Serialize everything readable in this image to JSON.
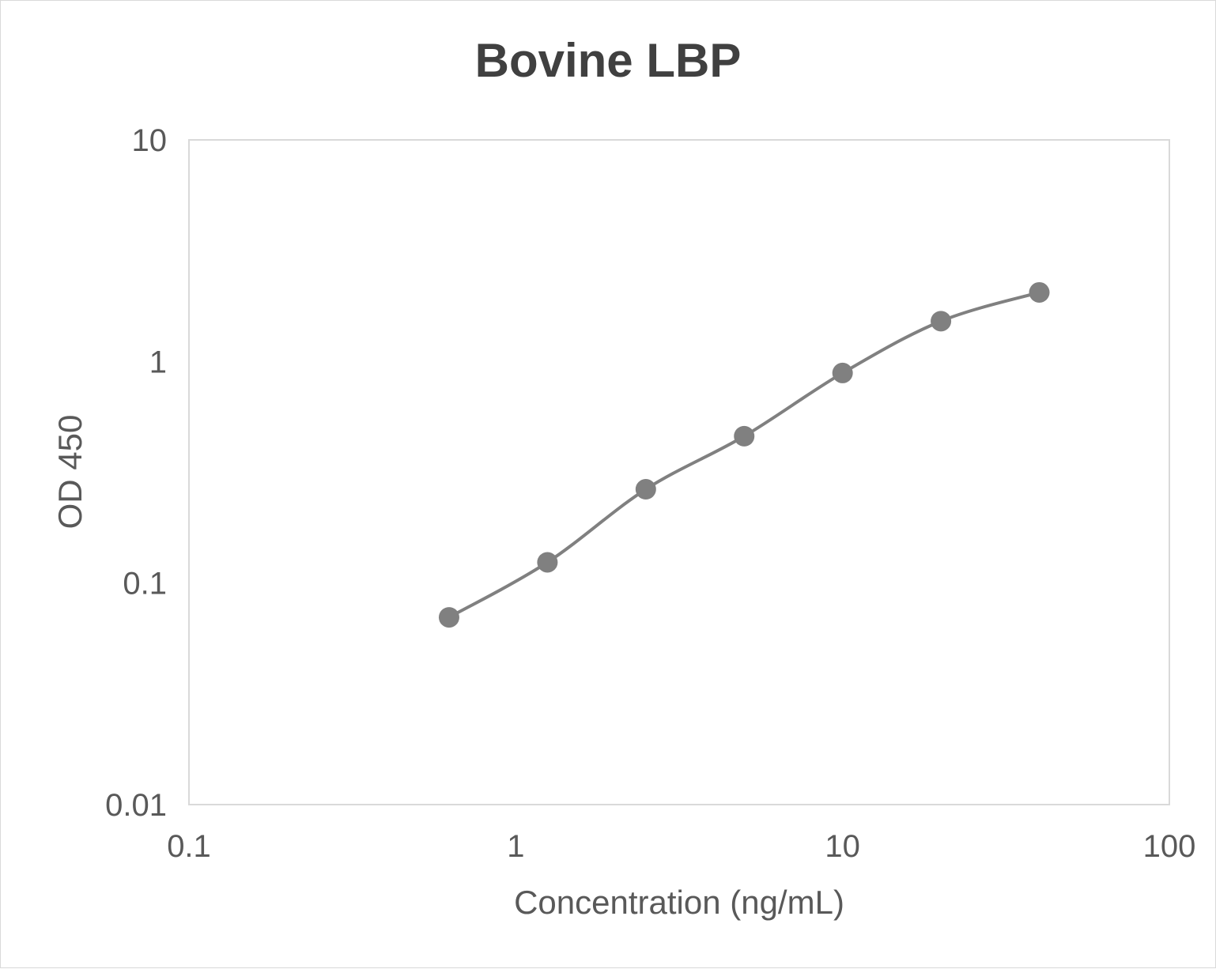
{
  "chart_data": {
    "type": "line",
    "title": "Bovine LBP",
    "xlabel": "Concentration (ng/mL)",
    "ylabel": "OD 450",
    "x_scale": "log",
    "y_scale": "log",
    "xlim": [
      0.1,
      100
    ],
    "ylim": [
      0.01,
      10
    ],
    "x_ticks": [
      "0.1",
      "1",
      "10",
      "100"
    ],
    "y_ticks": [
      "0.01",
      "0.1",
      "1",
      "10"
    ],
    "grid": false,
    "legend": "none",
    "smooth": true,
    "color": "#808080",
    "series": [
      {
        "x": [
          0.625,
          1.25,
          2.5,
          5,
          10,
          20,
          40
        ],
        "y": [
          0.07,
          0.124,
          0.265,
          0.46,
          0.887,
          1.52,
          2.05
        ]
      }
    ]
  }
}
